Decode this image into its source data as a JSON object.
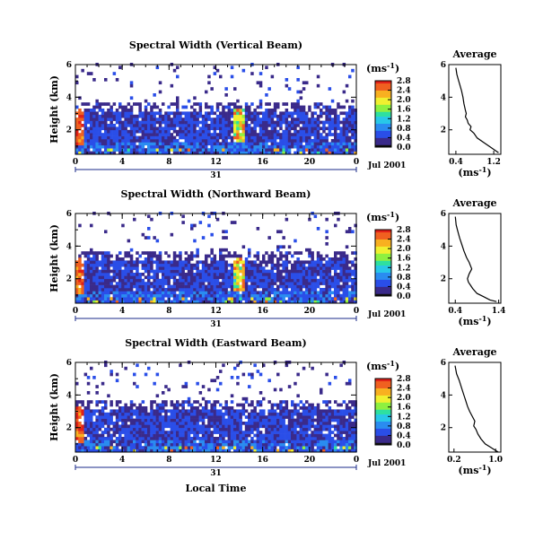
{
  "figure": {
    "xlabel_bottom": "Local Time",
    "date_label": "Jul 2001",
    "day_label": "31",
    "colorbar_unit_label": "(ms",
    "colorbar_unit_exp": "-1",
    "average_title": "Average",
    "average_xunit": "(ms",
    "average_xunit_exp": "-1"
  },
  "colors": {
    "colormap": [
      "#101010",
      "#3a2a8a",
      "#2a4ee8",
      "#2a8cf0",
      "#28c8e8",
      "#2ee0a0",
      "#8ef040",
      "#f0f030",
      "#f8b020",
      "#f06020",
      "#e02018"
    ]
  },
  "chart_data": [
    {
      "type": "heatmap",
      "title": "Spectral Width (Vertical Beam)",
      "ylabel": "Height (km)",
      "xlabel": "",
      "x_ticks": [
        "0",
        "4",
        "8",
        "12",
        "16",
        "20",
        "0"
      ],
      "y_ticks": [
        "2",
        "4",
        "6"
      ],
      "xlim": [
        0,
        24
      ],
      "ylim": [
        0.5,
        6
      ],
      "colorbar": {
        "ticks": [
          "0.0",
          "0.4",
          "0.8",
          "1.2",
          "1.6",
          "2.0",
          "2.4",
          "2.8"
        ],
        "range": [
          0,
          2.8
        ]
      },
      "description_values": "Spectral width mostly 0.2-0.8 ms-1 below 3 km; high values (2.4-2.8) near 0-0.5 h and 13.5-14.5 h at 1-3 km; sparse echoes 3-6 km"
    },
    {
      "type": "line",
      "title": "Average",
      "xlabel": "(ms-1)",
      "ylabel": "",
      "x_ticks": [
        "0.4",
        "1.2"
      ],
      "y_ticks": [
        "2",
        "4",
        "6"
      ],
      "xlim": [
        0.25,
        1.35
      ],
      "ylim": [
        0.5,
        6
      ],
      "series": [
        {
          "x": [
            0.4,
            0.42,
            0.45,
            0.48,
            0.52,
            0.55,
            0.57,
            0.6,
            0.62,
            0.6,
            0.64,
            0.66,
            0.72,
            0.7,
            0.78,
            0.85,
            1.0,
            1.15,
            1.3
          ],
          "y": [
            5.8,
            5.4,
            5.1,
            4.8,
            4.4,
            4.0,
            3.6,
            3.2,
            3.0,
            2.8,
            2.6,
            2.4,
            2.2,
            2.0,
            1.8,
            1.5,
            1.2,
            0.9,
            0.6
          ]
        }
      ]
    },
    {
      "type": "heatmap",
      "title": "Spectral Width (Northward Beam)",
      "ylabel": "Height (km)",
      "xlabel": "",
      "x_ticks": [
        "0",
        "4",
        "8",
        "12",
        "16",
        "20",
        "0"
      ],
      "y_ticks": [
        "2",
        "4",
        "6"
      ],
      "xlim": [
        0,
        24
      ],
      "ylim": [
        0.5,
        6
      ],
      "colorbar": {
        "ticks": [
          "0.0",
          "0.4",
          "0.8",
          "1.2",
          "1.6",
          "2.0",
          "2.4",
          "2.8"
        ],
        "range": [
          0,
          2.8
        ]
      },
      "description_values": "Spectral width mostly 0.2-0.8 ms-1 below 3.5 km; high values near 13.5-14 h around 2 km; sparse echoes aloft"
    },
    {
      "type": "line",
      "title": "Average",
      "xlabel": "(ms-1)",
      "ylabel": "",
      "x_ticks": [
        "0.4",
        "1.4"
      ],
      "y_ticks": [
        "2",
        "4",
        "6"
      ],
      "xlim": [
        0.25,
        1.45
      ],
      "ylim": [
        0.5,
        6
      ],
      "series": [
        {
          "x": [
            0.4,
            0.42,
            0.46,
            0.5,
            0.55,
            0.6,
            0.66,
            0.72,
            0.78,
            0.72,
            0.68,
            0.7,
            0.75,
            0.8,
            0.9,
            1.05,
            1.2,
            1.35
          ],
          "y": [
            5.8,
            5.3,
            4.9,
            4.5,
            4.1,
            3.7,
            3.3,
            3.0,
            2.6,
            2.3,
            2.0,
            1.8,
            1.6,
            1.4,
            1.1,
            0.9,
            0.7,
            0.6
          ]
        }
      ]
    },
    {
      "type": "heatmap",
      "title": "Spectral Width (Eastward Beam)",
      "ylabel": "Height (km)",
      "xlabel": "Local Time",
      "x_ticks": [
        "0",
        "4",
        "8",
        "12",
        "16",
        "20",
        "0"
      ],
      "y_ticks": [
        "2",
        "4",
        "6"
      ],
      "xlim": [
        0,
        24
      ],
      "ylim": [
        0.5,
        6
      ],
      "colorbar": {
        "ticks": [
          "0.0",
          "0.4",
          "0.8",
          "1.2",
          "1.6",
          "2.0",
          "2.4",
          "2.8"
        ],
        "range": [
          0,
          2.8
        ]
      },
      "description_values": "Spectral width mostly 0.2-0.8 ms-1 below 3.5 km; high values near 0-0.5 h at 1-2.5 km; sparse echoes aloft"
    },
    {
      "type": "line",
      "title": "Average",
      "xlabel": "(ms-1)",
      "ylabel": "",
      "x_ticks": [
        "0.2",
        "1.0"
      ],
      "y_ticks": [
        "2",
        "4",
        "6"
      ],
      "xlim": [
        0.1,
        1.1
      ],
      "ylim": [
        0.5,
        6
      ],
      "series": [
        {
          "x": [
            0.22,
            0.25,
            0.3,
            0.34,
            0.38,
            0.42,
            0.46,
            0.5,
            0.55,
            0.6,
            0.58,
            0.62,
            0.66,
            0.72,
            0.8,
            0.9,
            1.0,
            1.05
          ],
          "y": [
            5.8,
            5.3,
            4.9,
            4.5,
            4.1,
            3.7,
            3.3,
            3.0,
            2.7,
            2.4,
            2.1,
            1.9,
            1.6,
            1.3,
            1.0,
            0.8,
            0.6,
            0.5
          ]
        }
      ]
    }
  ]
}
